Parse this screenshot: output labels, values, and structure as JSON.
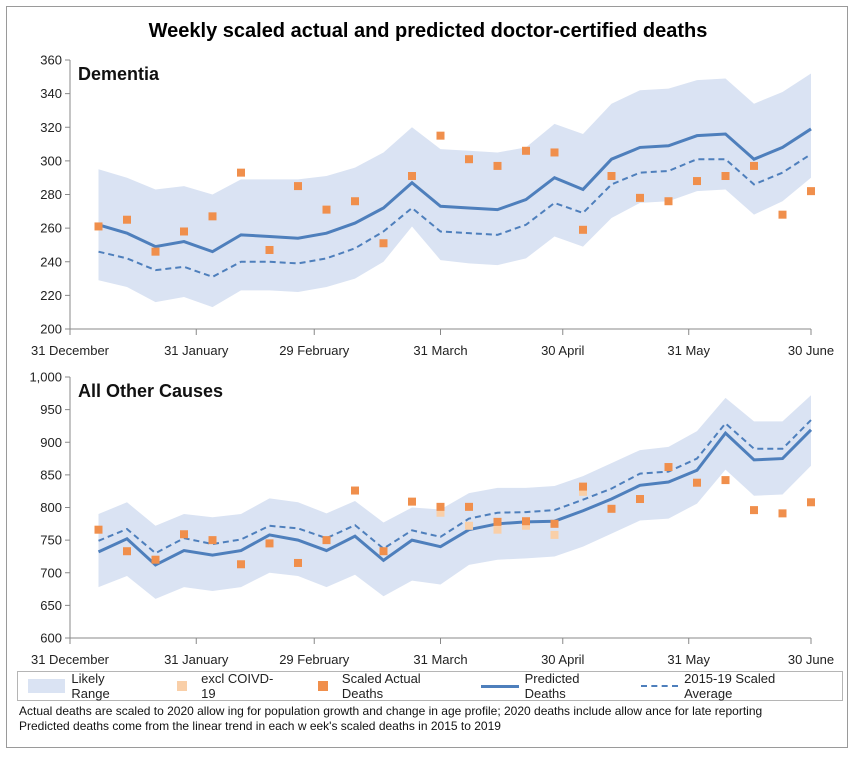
{
  "title": "Weekly scaled actual and predicted doctor-certified deaths",
  "legend": {
    "range": "Likely Range",
    "excl": "excl COIVD-19",
    "actual": "Scaled Actual Deaths",
    "predicted": "Predicted Deaths",
    "average": "2015-19 Scaled Average"
  },
  "notes": {
    "line1": "Actual deaths are scaled to 2020 allow ing for population growth and change in age profile; 2020 deaths include allow ance for late reporting",
    "line2": "Predicted deaths come from the linear trend in each w eek's scaled deaths in 2015 to 2019"
  },
  "colors": {
    "range": "#dae3f3",
    "predicted": "#4e7fbc",
    "actual": "#f08f4c",
    "excl": "#f9cfa8"
  },
  "chart_data": [
    {
      "type": "line",
      "panel_label": "Dementia",
      "x_tick_labels": [
        "31 December",
        "31 January",
        "29 February",
        "31 March",
        "30 April",
        "31 May",
        "30 June"
      ],
      "x_tick_weeks": [
        0,
        4.43,
        8.57,
        13,
        17.29,
        21.71,
        26
      ],
      "ylim": [
        200,
        360
      ],
      "y_ticks": [
        200,
        220,
        240,
        260,
        280,
        300,
        320,
        340,
        360
      ],
      "y_tick_labels": [
        "200",
        "220",
        "240",
        "260",
        "280",
        "300",
        "320",
        "340",
        "360"
      ],
      "weeks": [
        1,
        2,
        3,
        4,
        5,
        6,
        7,
        8,
        9,
        10,
        11,
        12,
        13,
        14,
        15,
        16,
        17,
        18,
        19,
        20,
        21,
        22,
        23,
        24,
        25,
        26
      ],
      "range_upper": [
        295,
        290,
        283,
        285,
        280,
        289,
        289,
        289,
        291,
        296,
        305,
        320,
        307,
        306,
        305,
        308,
        322,
        316,
        334,
        342,
        343,
        348,
        349,
        334,
        341,
        352
      ],
      "range_lower": [
        229,
        225,
        216,
        219,
        213,
        223,
        223,
        222,
        225,
        230,
        240,
        261,
        241,
        239,
        238,
        242,
        255,
        249,
        266,
        275,
        276,
        282,
        283,
        268,
        276,
        290
      ],
      "predicted": [
        262,
        257,
        249,
        252,
        246,
        256,
        255,
        254,
        257,
        263,
        272,
        287,
        273,
        272,
        271,
        277,
        290,
        283,
        301,
        308,
        309,
        315,
        316,
        301,
        308,
        319
      ],
      "average": [
        246,
        242,
        235,
        237,
        231,
        240,
        240,
        239,
        242,
        248,
        258,
        272,
        258,
        257,
        256,
        262,
        275,
        269,
        286,
        293,
        294,
        301,
        301,
        286,
        293,
        304
      ],
      "actual": [
        261,
        265,
        246,
        258,
        267,
        293,
        247,
        285,
        271,
        276,
        251,
        291,
        315,
        301,
        297,
        306,
        305,
        259,
        291,
        278,
        276,
        288,
        291,
        297,
        268,
        282
      ],
      "excl_covid": []
    },
    {
      "type": "line",
      "panel_label": "All Other Causes",
      "x_tick_labels": [
        "31 December",
        "31 January",
        "29 February",
        "31 March",
        "30 April",
        "31 May",
        "30 June"
      ],
      "x_tick_weeks": [
        0,
        4.43,
        8.57,
        13,
        17.29,
        21.71,
        26
      ],
      "ylim": [
        600,
        1000
      ],
      "y_ticks": [
        600,
        650,
        700,
        750,
        800,
        850,
        900,
        950,
        1000
      ],
      "y_tick_labels": [
        "600",
        "650",
        "700",
        "750",
        "800",
        "850",
        "900",
        "950",
        "1,000"
      ],
      "weeks": [
        1,
        2,
        3,
        4,
        5,
        6,
        7,
        8,
        9,
        10,
        11,
        12,
        13,
        14,
        15,
        16,
        17,
        18,
        19,
        20,
        21,
        22,
        23,
        24,
        25,
        26
      ],
      "range_upper": [
        790,
        808,
        772,
        790,
        785,
        790,
        814,
        808,
        791,
        810,
        777,
        800,
        797,
        822,
        830,
        830,
        833,
        848,
        868,
        888,
        893,
        917,
        968,
        932,
        932,
        972
      ],
      "range_lower": [
        678,
        695,
        660,
        678,
        672,
        678,
        700,
        695,
        678,
        697,
        664,
        688,
        682,
        712,
        720,
        722,
        725,
        740,
        760,
        780,
        783,
        806,
        858,
        818,
        820,
        864
      ],
      "predicted": [
        732,
        752,
        712,
        734,
        727,
        734,
        758,
        750,
        734,
        756,
        719,
        750,
        740,
        766,
        775,
        778,
        779,
        795,
        813,
        834,
        839,
        857,
        914,
        873,
        875,
        919
      ],
      "average": [
        749,
        767,
        730,
        753,
        744,
        751,
        772,
        768,
        753,
        773,
        737,
        765,
        755,
        783,
        792,
        793,
        796,
        812,
        829,
        852,
        855,
        875,
        929,
        890,
        890,
        934
      ],
      "actual": [
        766,
        733,
        720,
        759,
        750,
        713,
        745,
        715,
        750,
        826,
        733,
        809,
        801,
        801,
        778,
        779,
        775,
        832,
        798,
        813,
        862,
        838,
        842,
        796,
        791,
        808
      ],
      "excl_covid": [
        null,
        null,
        null,
        null,
        null,
        null,
        null,
        null,
        null,
        null,
        null,
        null,
        792,
        772,
        766,
        772,
        758,
        824,
        null,
        null,
        null,
        null,
        null,
        null,
        null,
        null
      ]
    }
  ]
}
